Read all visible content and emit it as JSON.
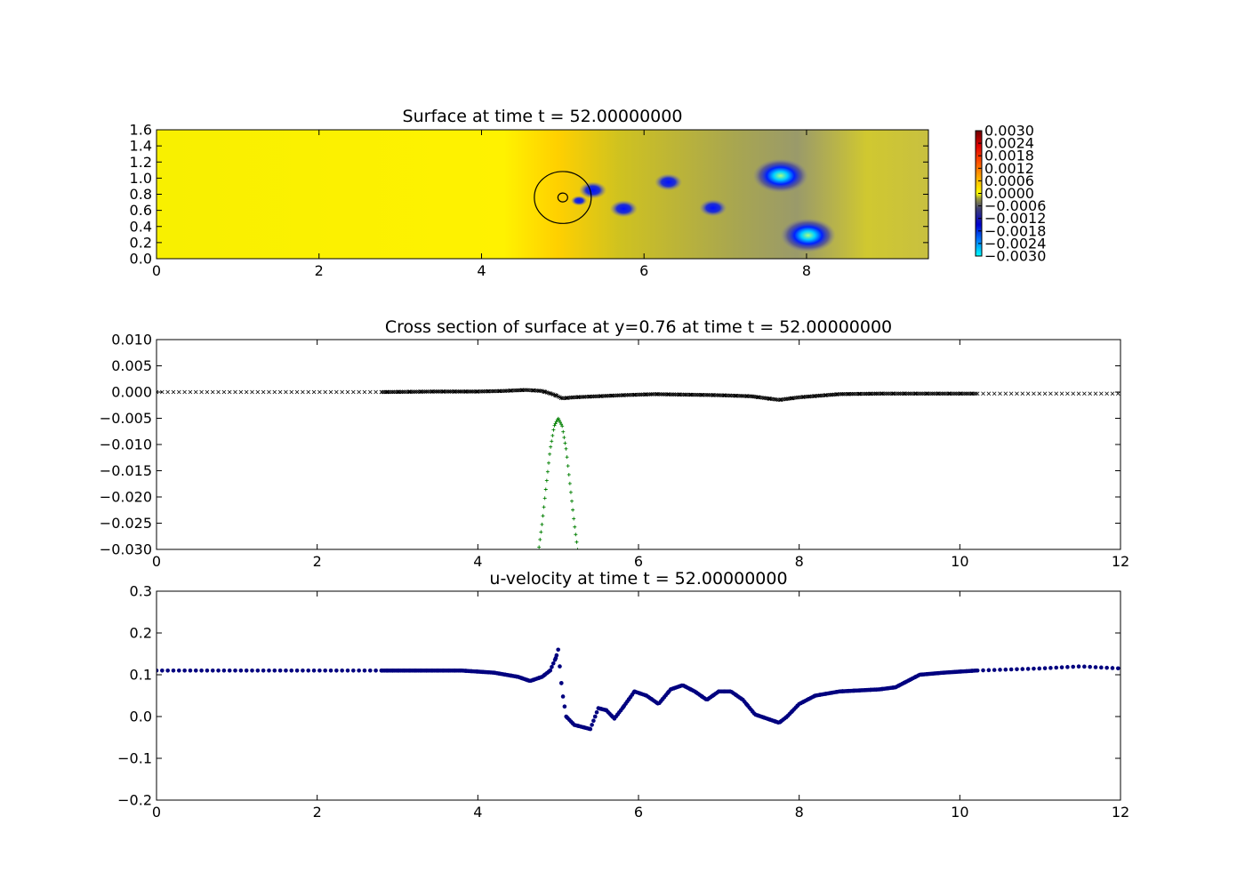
{
  "figure": {
    "background": "#ffffff"
  },
  "chart_data": [
    {
      "type": "heatmap",
      "title": "Surface at time t =    52.00000000",
      "xlim": [
        0,
        9.5
      ],
      "ylim": [
        0,
        1.6
      ],
      "xticks": [
        "0",
        "2",
        "4",
        "6",
        "8"
      ],
      "yticks": [
        "0.0",
        "0.2",
        "0.4",
        "0.6",
        "0.8",
        "1.0",
        "1.2",
        "1.4",
        "1.6"
      ],
      "colorbar": {
        "range": [
          -0.003,
          0.003
        ],
        "ticks": [
          "0.0030",
          "0.0024",
          "0.0018",
          "0.0012",
          "0.0006",
          "0.0000",
          "−0.0006",
          "−0.0012",
          "−0.0018",
          "−0.0024",
          "−0.0030"
        ]
      },
      "depressions": [
        {
          "x": 5.37,
          "y": 0.85,
          "value": -0.0018
        },
        {
          "x": 5.2,
          "y": 0.72,
          "value": -0.0012
        },
        {
          "x": 5.75,
          "y": 0.62,
          "value": -0.0018
        },
        {
          "x": 6.3,
          "y": 0.95,
          "value": -0.0018
        },
        {
          "x": 6.85,
          "y": 0.63,
          "value": -0.0018
        },
        {
          "x": 7.68,
          "y": 1.03,
          "value": -0.003
        },
        {
          "x": 8.02,
          "y": 0.29,
          "value": -0.003
        }
      ],
      "obstacle": {
        "center_x": 5.0,
        "center_y": 0.76,
        "outer_radius": 0.35,
        "inner_radius": 0.06
      }
    },
    {
      "type": "scatter",
      "title": "Cross section of surface at y=0.76 at time t =    52.00000000",
      "xlim": [
        0,
        12
      ],
      "ylim": [
        -0.03,
        0.01
      ],
      "xticks": [
        "0",
        "2",
        "4",
        "6",
        "8",
        "10",
        "12"
      ],
      "yticks": [
        "−0.030",
        "−0.025",
        "−0.020",
        "−0.015",
        "−0.010",
        "−0.005",
        "0.000",
        "0.005",
        "0.010"
      ],
      "series": [
        {
          "marker": "x",
          "color": "#000000",
          "x": [
            0,
            2,
            2.8,
            3.5,
            4.0,
            4.3,
            4.6,
            4.8,
            4.95,
            5.05,
            5.2,
            5.5,
            5.8,
            6.2,
            6.6,
            7.0,
            7.4,
            7.75,
            8.0,
            8.5,
            9.0,
            9.5,
            10.2,
            11,
            12
          ],
          "y": [
            0,
            0,
            0,
            0.0001,
            0.0001,
            0.0002,
            0.0004,
            0.0002,
            -0.0005,
            -0.0012,
            -0.001,
            -0.0008,
            -0.0006,
            -0.0004,
            -0.0005,
            -0.0006,
            -0.0008,
            -0.0015,
            -0.001,
            -0.0004,
            -0.0003,
            -0.0003,
            -0.0003,
            -0.0003,
            -0.0003
          ]
        },
        {
          "marker": "+",
          "color": "#007f00",
          "x": [
            4.75,
            4.8,
            4.85,
            4.9,
            4.95,
            5.0,
            5.05,
            5.1,
            5.15,
            5.2,
            5.25
          ],
          "y": [
            -0.031,
            -0.025,
            -0.018,
            -0.011,
            -0.0065,
            -0.005,
            -0.0065,
            -0.011,
            -0.018,
            -0.025,
            -0.031
          ]
        }
      ]
    },
    {
      "type": "scatter",
      "title": "u-velocity at time t =    52.00000000",
      "xlim": [
        0,
        12
      ],
      "ylim": [
        -0.2,
        0.3
      ],
      "xticks": [
        "0",
        "2",
        "4",
        "6",
        "8",
        "10",
        "12"
      ],
      "yticks": [
        "−0.2",
        "−0.1",
        "0.0",
        "0.1",
        "0.2",
        "0.3"
      ],
      "series": [
        {
          "marker": "o",
          "color": "#00007f",
          "x": [
            0,
            1,
            2,
            2.8,
            3.3,
            3.8,
            4.2,
            4.5,
            4.65,
            4.8,
            4.9,
            4.97,
            5.0,
            5.05,
            5.1,
            5.2,
            5.3,
            5.4,
            5.5,
            5.6,
            5.7,
            5.8,
            5.95,
            6.1,
            6.25,
            6.4,
            6.55,
            6.7,
            6.85,
            7.0,
            7.15,
            7.3,
            7.45,
            7.6,
            7.75,
            7.85,
            8.0,
            8.2,
            8.5,
            9.0,
            9.2,
            9.5,
            9.8,
            10.2,
            11,
            11.5,
            12
          ],
          "y": [
            0.11,
            0.11,
            0.11,
            0.11,
            0.11,
            0.11,
            0.105,
            0.095,
            0.085,
            0.095,
            0.11,
            0.14,
            0.16,
            0.06,
            0.0,
            -0.02,
            -0.025,
            -0.03,
            0.02,
            0.015,
            -0.005,
            0.02,
            0.06,
            0.05,
            0.03,
            0.065,
            0.075,
            0.06,
            0.04,
            0.06,
            0.06,
            0.04,
            0.005,
            -0.005,
            -0.015,
            0.0,
            0.03,
            0.05,
            0.06,
            0.065,
            0.07,
            0.1,
            0.105,
            0.11,
            0.115,
            0.12,
            0.115
          ]
        }
      ]
    }
  ]
}
